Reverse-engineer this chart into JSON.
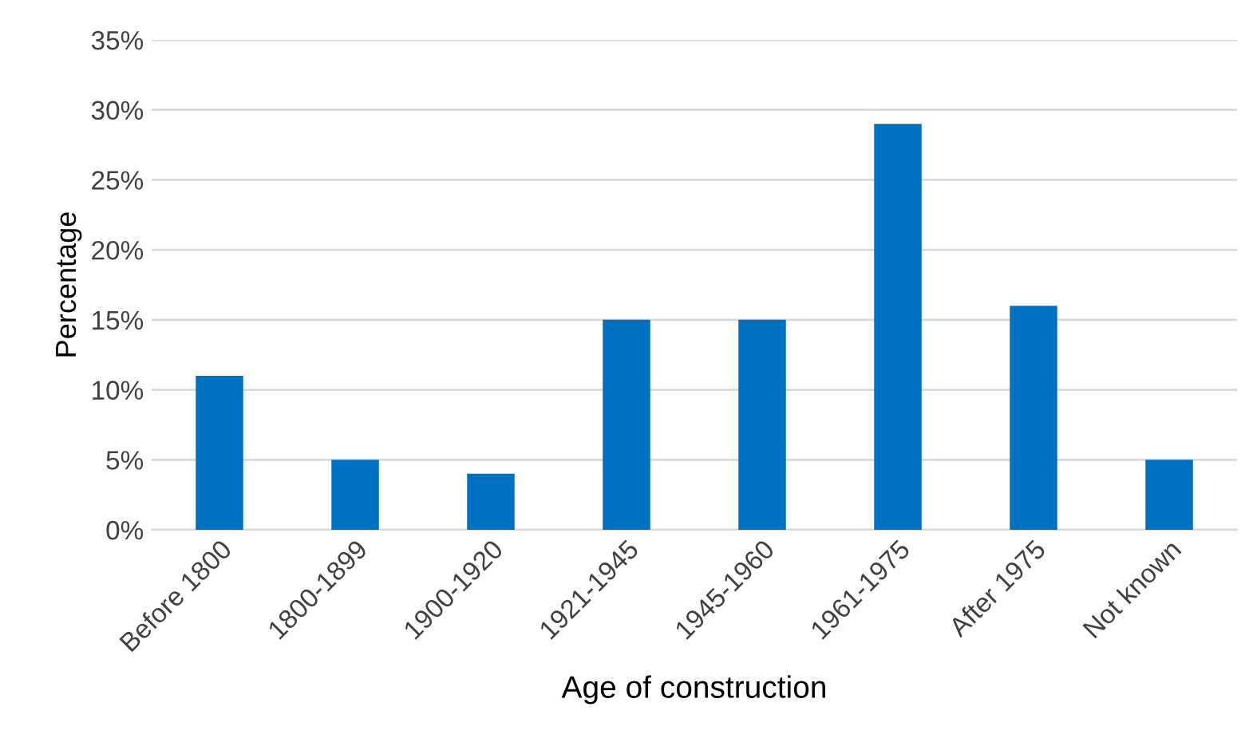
{
  "chart_data": {
    "type": "bar",
    "xlabel": "Age of construction",
    "ylabel": "Percentage",
    "categories": [
      "Before 1800",
      "1800-1899",
      "1900-1920",
      "1921-1945",
      "1945-1960",
      "1961-1975",
      "After 1975",
      "Not known"
    ],
    "values": [
      11,
      5,
      4,
      15,
      15,
      29,
      16,
      5
    ],
    "color": "#0070c0",
    "ylim": [
      0,
      35
    ],
    "yticks": [
      {
        "value": 0,
        "label": "0%"
      },
      {
        "value": 5,
        "label": "5%"
      },
      {
        "value": 10,
        "label": "10%"
      },
      {
        "value": 15,
        "label": "15%"
      },
      {
        "value": 20,
        "label": "20%"
      },
      {
        "value": 25,
        "label": "25%"
      },
      {
        "value": 30,
        "label": "30%"
      },
      {
        "value": 35,
        "label": "35%"
      }
    ],
    "grid": "y",
    "legend": false
  }
}
